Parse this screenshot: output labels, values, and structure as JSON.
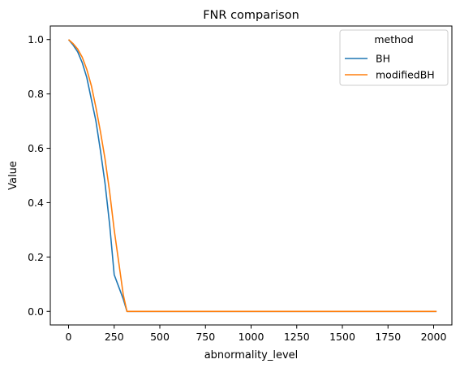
{
  "chart_data": {
    "type": "line",
    "title": "FNR comparison",
    "xlabel": "abnormality_level",
    "ylabel": "Value",
    "xlim": [
      -100,
      2100
    ],
    "ylim": [
      -0.05,
      1.05
    ],
    "xticks": [
      0,
      250,
      500,
      750,
      1000,
      1250,
      1500,
      1750,
      2000
    ],
    "xtick_labels": [
      "0",
      "250",
      "500",
      "750",
      "1000",
      "1250",
      "1500",
      "1750",
      "2000"
    ],
    "yticks": [
      0.0,
      0.2,
      0.4,
      0.6,
      0.8,
      1.0
    ],
    "ytick_labels": [
      "0.0",
      "0.2",
      "0.4",
      "0.6",
      "0.8",
      "1.0"
    ],
    "grid": false,
    "legend": {
      "title": "method",
      "placement": "top-right"
    },
    "series": [
      {
        "name": "BH",
        "color": "#1f77b4",
        "x": [
          0,
          25,
          50,
          75,
          100,
          125,
          150,
          175,
          200,
          225,
          250,
          275,
          300,
          320,
          400,
          600,
          800,
          1000,
          1200,
          1400,
          1600,
          1800,
          2016
        ],
        "y": [
          1.0,
          0.98,
          0.955,
          0.915,
          0.86,
          0.78,
          0.7,
          0.59,
          0.47,
          0.32,
          0.135,
          0.09,
          0.045,
          0.0,
          0.0,
          0.0,
          0.0,
          0.0,
          0.0,
          0.0,
          0.0,
          0.0,
          0.0
        ]
      },
      {
        "name": "modifiedBH",
        "color": "#ff7f0e",
        "x": [
          0,
          25,
          50,
          75,
          100,
          125,
          150,
          175,
          200,
          225,
          250,
          275,
          300,
          320,
          400,
          600,
          800,
          1000,
          1200,
          1400,
          1600,
          1800,
          2016
        ],
        "y": [
          1.0,
          0.985,
          0.965,
          0.935,
          0.89,
          0.83,
          0.75,
          0.66,
          0.56,
          0.44,
          0.3,
          0.18,
          0.06,
          0.0,
          0.0,
          0.0,
          0.0,
          0.0,
          0.0,
          0.0,
          0.0,
          0.0,
          0.0
        ]
      }
    ]
  }
}
